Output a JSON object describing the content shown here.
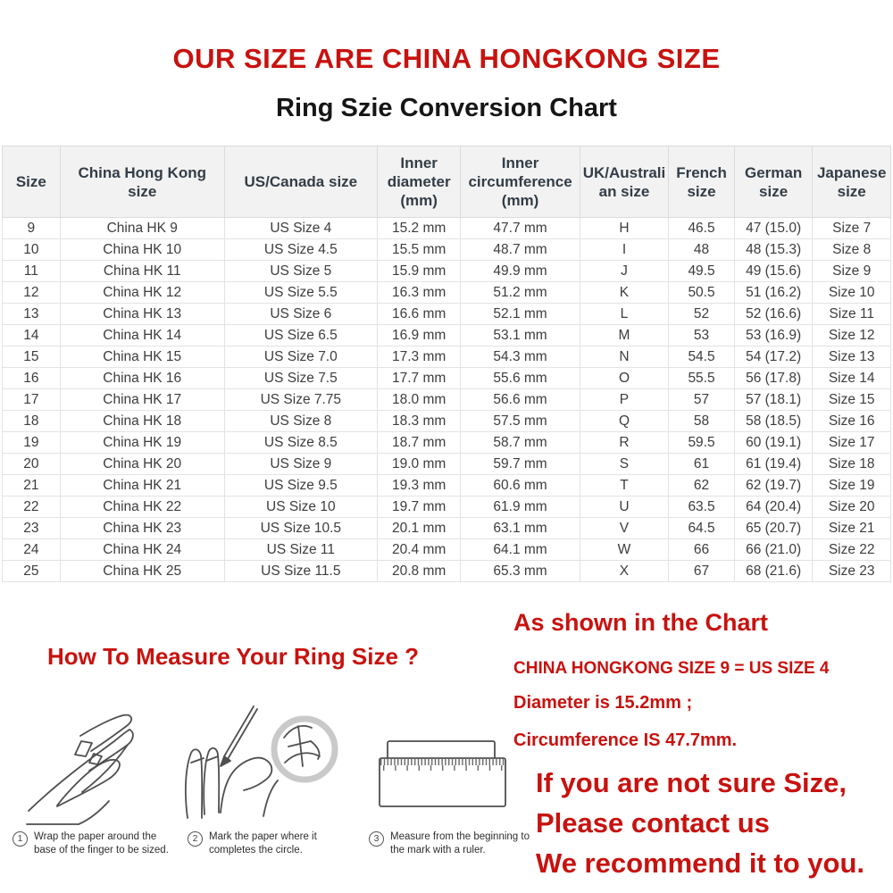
{
  "page": {
    "title_line1": "OUR SIZE ARE CHINA HONGKONG SIZE",
    "title_line2": "Ring Szie Conversion Chart"
  },
  "colors": {
    "accent_red": "#c8120f",
    "header_bg": "#f2f2f2",
    "header_text": "#333d47",
    "cell_text": "#3d3d3d"
  },
  "table": {
    "columns": [
      "Size",
      "China Hong Kong\nsize",
      "US/Canada size",
      "Inner\ndiameter\n(mm)",
      "Inner\ncircumference\n(mm)",
      "UK/Australi\nan size",
      "French\nsize",
      "German\nsize",
      "Japanese\nsize"
    ],
    "rows": [
      [
        "9",
        "China HK 9",
        "US Size 4",
        "15.2 mm",
        "47.7 mm",
        "H",
        "46.5",
        "47 (15.0)",
        "Size 7"
      ],
      [
        "10",
        "China HK 10",
        "US Size 4.5",
        "15.5 mm",
        "48.7 mm",
        "I",
        "48",
        "48 (15.3)",
        "Size 8"
      ],
      [
        "11",
        "China HK 11",
        "US Size 5",
        "15.9 mm",
        "49.9 mm",
        "J",
        "49.5",
        "49 (15.6)",
        "Size 9"
      ],
      [
        "12",
        "China HK 12",
        "US Size 5.5",
        "16.3 mm",
        "51.2 mm",
        "K",
        "50.5",
        "51 (16.2)",
        "Size 10"
      ],
      [
        "13",
        "China HK 13",
        "US Size 6",
        "16.6 mm",
        "52.1 mm",
        "L",
        "52",
        "52 (16.6)",
        "Size 11"
      ],
      [
        "14",
        "China HK 14",
        "US Size 6.5",
        "16.9 mm",
        "53.1 mm",
        "M",
        "53",
        "53 (16.9)",
        "Size 12"
      ],
      [
        "15",
        "China HK 15",
        "US Size 7.0",
        "17.3 mm",
        "54.3 mm",
        "N",
        "54.5",
        "54 (17.2)",
        "Size 13"
      ],
      [
        "16",
        "China HK 16",
        "US Size 7.5",
        "17.7 mm",
        "55.6 mm",
        "O",
        "55.5",
        "56 (17.8)",
        "Size 14"
      ],
      [
        "17",
        "China HK 17",
        "US Size 7.75",
        "18.0 mm",
        "56.6 mm",
        "P",
        "57",
        "57 (18.1)",
        "Size 15"
      ],
      [
        "18",
        "China HK 18",
        "US Size 8",
        "18.3 mm",
        "57.5 mm",
        "Q",
        "58",
        "58 (18.5)",
        "Size 16"
      ],
      [
        "19",
        "China HK 19",
        "US Size 8.5",
        "18.7 mm",
        "58.7 mm",
        "R",
        "59.5",
        "60 (19.1)",
        "Size 17"
      ],
      [
        "20",
        "China HK 20",
        "US Size 9",
        "19.0 mm",
        "59.7 mm",
        "S",
        "61",
        "61 (19.4)",
        "Size 18"
      ],
      [
        "21",
        "China HK 21",
        "US Size 9.5",
        "19.3 mm",
        "60.6 mm",
        "T",
        "62",
        "62 (19.7)",
        "Size 19"
      ],
      [
        "22",
        "China HK 22",
        "US Size 10",
        "19.7 mm",
        "61.9 mm",
        "U",
        "63.5",
        "64 (20.4)",
        "Size 20"
      ],
      [
        "23",
        "China HK 23",
        "US Size 10.5",
        "20.1 mm",
        "63.1 mm",
        "V",
        "64.5",
        "65 (20.7)",
        "Size 21"
      ],
      [
        "24",
        "China HK 24",
        "US Size 11",
        "20.4 mm",
        "64.1 mm",
        "W",
        "66",
        "66 (21.0)",
        "Size 22"
      ],
      [
        "25",
        "China HK 25",
        "US Size 11.5",
        "20.8 mm",
        "65.3 mm",
        "X",
        "67",
        "68 (21.6)",
        "Size 23"
      ]
    ]
  },
  "measure": {
    "heading": "How To Measure Your Ring Size ?",
    "steps": [
      {
        "num": "1",
        "caption": "Wrap the paper around the\nbase of the finger to be sized."
      },
      {
        "num": "2",
        "caption": "Mark the paper where it\ncompletes the circle."
      },
      {
        "num": "3",
        "caption": "Measure from the beginning to\nthe mark with a ruler."
      }
    ]
  },
  "note": {
    "heading": "As shown in the Chart",
    "line1": "CHINA HONGKONG SIZE 9 = US SIZE 4",
    "line2": "Diameter is 15.2mm ;",
    "line3": "Circumference IS 47.7mm.",
    "cta1": "If you are not sure Size,",
    "cta2": "Please contact us",
    "cta3": "We recommend it to you."
  }
}
